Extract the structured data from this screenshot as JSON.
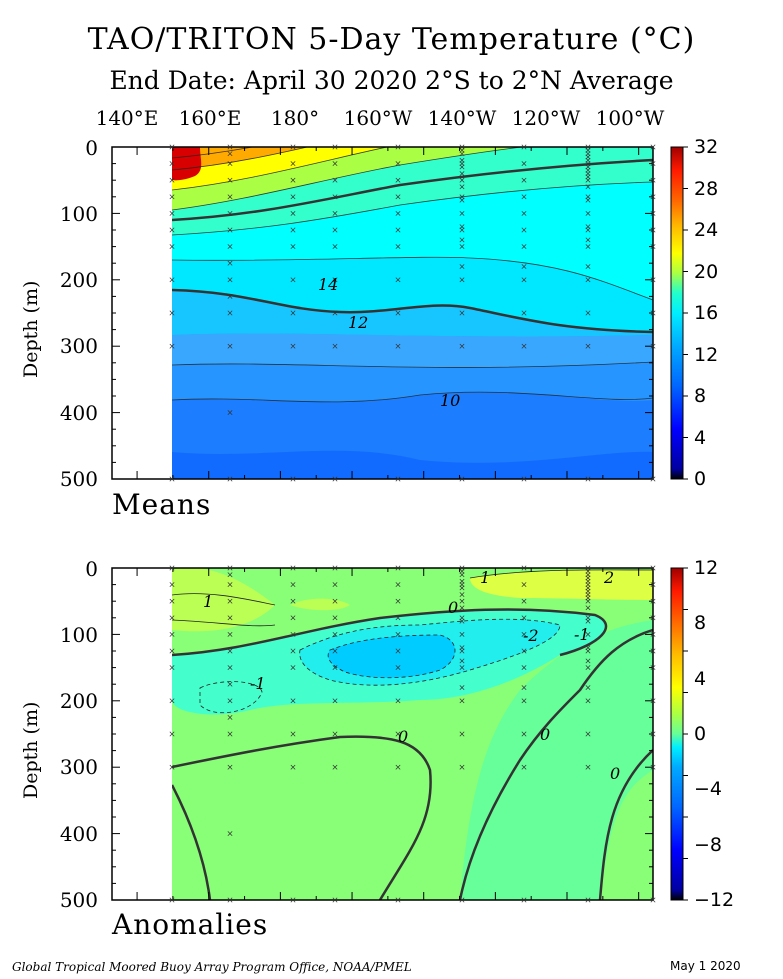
{
  "header": {
    "title": "TAO/TRITON 5-Day Temperature (°C)",
    "subtitle": "End Date: April 30 2020   2°S to 2°N Average"
  },
  "chart_data": [
    {
      "type": "heatmap",
      "panel": "Means",
      "x_tick_labels": [
        "140°E",
        "160°E",
        "180°",
        "160°W",
        "140°W",
        "120°W",
        "100°W"
      ],
      "ylabel": "Depth (m)",
      "y_ticks": [
        "0",
        "100",
        "200",
        "300",
        "400",
        "500"
      ],
      "ylim": [
        500,
        0
      ],
      "colorbar_ticks": [
        "32",
        "28",
        "24",
        "20",
        "16",
        "12",
        "8",
        "4",
        "0"
      ],
      "colorbar_range": [
        0,
        32
      ],
      "contour_labels": [
        "14",
        "12",
        "10"
      ],
      "x_lon": [
        165,
        180,
        195,
        210,
        225,
        240,
        255,
        270
      ],
      "depths": [
        0,
        100,
        150,
        200,
        300,
        500
      ],
      "approx_values_degC": [
        [
          30,
          30,
          30,
          29,
          28,
          27,
          26,
          25
        ],
        [
          29,
          28,
          26,
          23,
          21,
          18,
          16,
          15
        ],
        [
          24,
          22,
          19,
          18,
          16,
          15,
          14,
          14
        ],
        [
          17,
          16,
          15,
          14,
          14,
          13,
          13,
          12
        ],
        [
          12,
          12,
          12,
          12,
          13,
          12,
          12,
          12
        ],
        [
          9,
          9,
          9,
          9,
          9,
          9,
          9,
          9
        ]
      ]
    },
    {
      "type": "heatmap",
      "panel": "Anomalies",
      "ylabel": "Depth (m)",
      "y_ticks": [
        "0",
        "100",
        "200",
        "300",
        "400",
        "500"
      ],
      "ylim": [
        500,
        0
      ],
      "colorbar_ticks": [
        "12",
        "8",
        "4",
        "0",
        "−4",
        "−8",
        "−12"
      ],
      "colorbar_range": [
        -12,
        12
      ],
      "contour_labels": [
        "1",
        "1",
        "2",
        "0",
        "-2",
        "-1",
        "-1",
        "0",
        "0",
        "0"
      ],
      "features": [
        {
          "label": "cold anomaly core",
          "lon": 205,
          "depth": 130,
          "value": -3
        },
        {
          "label": "warm surface anomaly east",
          "lon": 270,
          "depth": 20,
          "value": 2
        },
        {
          "label": "warm anomaly west",
          "lon": 170,
          "depth": 70,
          "value": 1
        }
      ]
    }
  ],
  "footer": {
    "credit": "Global Tropical Moored Buoy Array Program Office, NOAA/PMEL",
    "date": "May  1 2020"
  }
}
